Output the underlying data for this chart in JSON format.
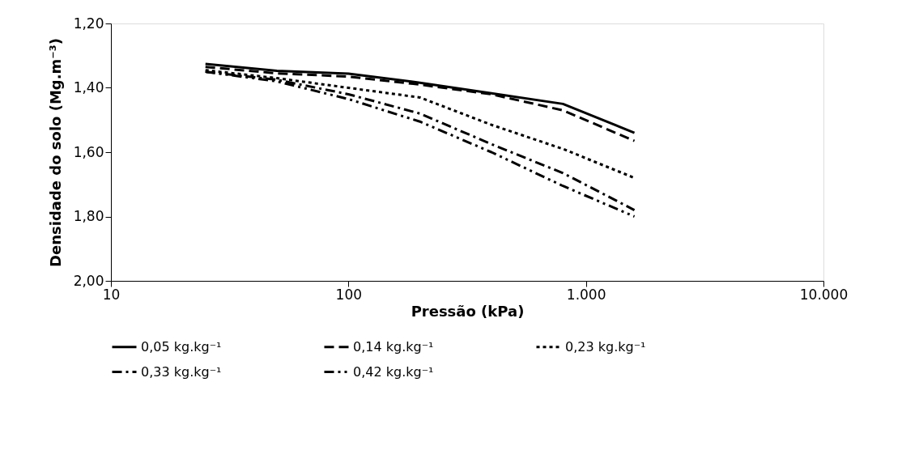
{
  "chart_data": {
    "type": "line",
    "xlabel": "Pressão (kPa)",
    "ylabel": "Densidade do solo (Mg.m⁻³)",
    "x": [
      25,
      50,
      100,
      200,
      400,
      800,
      1600
    ],
    "series": [
      {
        "name": "0,05 kg.kg⁻¹",
        "color": "#000000",
        "line_style": "solid",
        "values": [
          1.326,
          1.347,
          1.356,
          1.384,
          1.417,
          1.45,
          1.54
        ]
      },
      {
        "name": "0,14 kg.kg⁻¹",
        "color": "#000000",
        "line_style": "dashed",
        "values": [
          1.335,
          1.355,
          1.365,
          1.39,
          1.42,
          1.47,
          1.565
        ]
      },
      {
        "name": "0,23 kg.kg⁻¹",
        "color": "#000000",
        "line_style": "dotted",
        "values": [
          1.345,
          1.37,
          1.4,
          1.43,
          1.515,
          1.59,
          1.68
        ]
      },
      {
        "name": "0,33 kg.kg⁻¹",
        "color": "#000000",
        "line_style": "dashed",
        "values": [
          1.35,
          1.375,
          1.42,
          1.48,
          1.575,
          1.665,
          1.78
        ]
      },
      {
        "name": "0,42 kg.kg⁻¹",
        "color": "#000000",
        "line_style": "dashed",
        "values": [
          1.35,
          1.38,
          1.435,
          1.505,
          1.6,
          1.705,
          1.8
        ]
      }
    ],
    "xlim": [
      10,
      10000
    ],
    "xticks": [
      10,
      100,
      {
        "value": 1000,
        "label": "1.000"
      },
      {
        "value": 10000,
        "label": "10.000"
      }
    ],
    "ylim": [
      2.0,
      1.2
    ],
    "yticks": [
      {
        "value": 1.2,
        "label": "1,20"
      },
      {
        "value": 1.4,
        "label": "1,40"
      },
      {
        "value": 1.6,
        "label": "1,60"
      },
      {
        "value": 1.8,
        "label": "1,80"
      },
      {
        "value": 2.0,
        "label": "2,00"
      }
    ],
    "log": "x",
    "grid": false,
    "legend": "bottom",
    "marker": "none"
  }
}
